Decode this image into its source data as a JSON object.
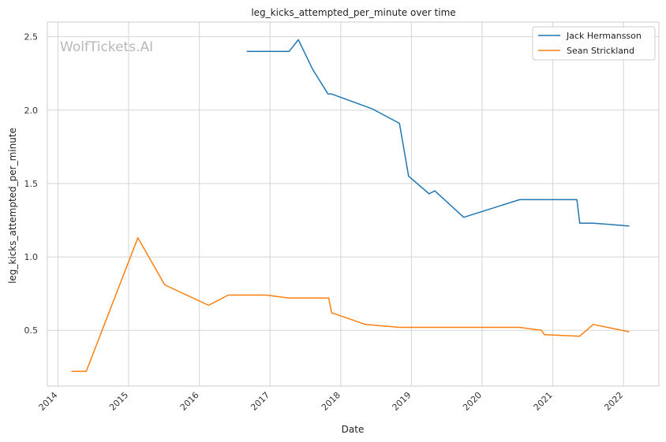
{
  "chart_data": {
    "type": "line",
    "title": "leg_kicks_attempted_per_minute over time",
    "xlabel": "Date",
    "ylabel": "leg_kicks_attempted_per_minute",
    "watermark": "WolfTickets.AI",
    "x_ticks": [
      "2014",
      "2015",
      "2016",
      "2017",
      "2018",
      "2019",
      "2020",
      "2021",
      "2022"
    ],
    "y_ticks": [
      "0.5",
      "1.0",
      "1.5",
      "2.0",
      "2.5"
    ],
    "xlim": [
      2013.85,
      2022.5
    ],
    "ylim": [
      0.12,
      2.6
    ],
    "grid": true,
    "legend_position": "top-right",
    "series": [
      {
        "name": "Jack Hermansson",
        "color": "#1f77b4",
        "points": [
          [
            2016.67,
            2.4
          ],
          [
            2017.27,
            2.4
          ],
          [
            2017.4,
            2.48
          ],
          [
            2017.6,
            2.28
          ],
          [
            2017.82,
            2.11
          ],
          [
            2017.87,
            2.11
          ],
          [
            2018.44,
            2.01
          ],
          [
            2018.83,
            1.91
          ],
          [
            2018.96,
            1.55
          ],
          [
            2019.25,
            1.43
          ],
          [
            2019.33,
            1.45
          ],
          [
            2019.74,
            1.27
          ],
          [
            2020.53,
            1.39
          ],
          [
            2020.88,
            1.39
          ],
          [
            2020.92,
            1.39
          ],
          [
            2021.34,
            1.39
          ],
          [
            2021.38,
            1.23
          ],
          [
            2021.57,
            1.23
          ],
          [
            2022.08,
            1.21
          ]
        ]
      },
      {
        "name": "Sean Strickland",
        "color": "#ff7f0e",
        "points": [
          [
            2014.19,
            0.22
          ],
          [
            2014.4,
            0.22
          ],
          [
            2015.13,
            1.13
          ],
          [
            2015.51,
            0.81
          ],
          [
            2016.13,
            0.67
          ],
          [
            2016.41,
            0.74
          ],
          [
            2016.94,
            0.74
          ],
          [
            2017.27,
            0.72
          ],
          [
            2017.83,
            0.72
          ],
          [
            2017.87,
            0.62
          ],
          [
            2018.35,
            0.54
          ],
          [
            2018.83,
            0.52
          ],
          [
            2020.53,
            0.52
          ],
          [
            2020.84,
            0.5
          ],
          [
            2020.88,
            0.47
          ],
          [
            2021.38,
            0.46
          ],
          [
            2021.57,
            0.54
          ],
          [
            2022.08,
            0.49
          ]
        ]
      }
    ]
  }
}
